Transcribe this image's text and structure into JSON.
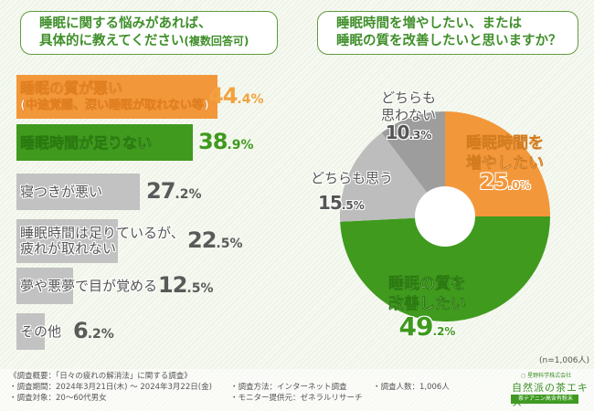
{
  "left_question": {
    "line1": "睡眠に関する悩みがあれば、",
    "line2": "具体的に教えてください",
    "suffix": "(複数回答可)"
  },
  "right_question": {
    "line1": "睡眠時間を増やしたい、または",
    "line2": "睡眠の質を改善したいと思いますか？"
  },
  "colors": {
    "orange": "#f2973a",
    "green": "#3f9a1e",
    "gray": "#c2c2c2",
    "gray_dark": "#9d9d9d",
    "gray_mid": "#bdbdbd",
    "title_green": "#3f8f2a"
  },
  "chart_data": [
    {
      "type": "bar",
      "orientation": "horizontal",
      "title": "睡眠に関する悩みがあれば、具体的に教えてください(複数回答可)",
      "categories": [
        "睡眠の質が悪い（中途覚醒、深い睡眠が取れない等）",
        "睡眠時間が足りない",
        "寝つきが悪い",
        "睡眠時間は足りているが、疲れが取れない",
        "夢や悪夢で目が覚める",
        "その他"
      ],
      "label_lines": [
        [
          "睡眠の質が悪い",
          "(中途覚醒、深い睡眠が取れない等)"
        ],
        [
          "睡眠時間が足りない"
        ],
        [
          "寝つきが悪い"
        ],
        [
          "睡眠時間は足りているが、",
          "疲れが取れない"
        ],
        [
          "夢や悪夢で目が覚める"
        ],
        [
          "その他"
        ]
      ],
      "values": [
        44.4,
        38.9,
        27.2,
        22.5,
        12.5,
        6.2
      ],
      "value_labels": [
        {
          "int": "44",
          "dec": ".4%"
        },
        {
          "int": "38",
          "dec": ".9%"
        },
        {
          "int": "27",
          "dec": ".2%"
        },
        {
          "int": "22",
          "dec": ".5%"
        },
        {
          "int": "12",
          "dec": ".5%"
        },
        {
          "int": "6",
          "dec": ".2%"
        }
      ],
      "bar_colors": [
        "#f2973a",
        "#3f9a1e",
        "#c2c2c2",
        "#c2c2c2",
        "#c2c2c2",
        "#c2c2c2"
      ],
      "value_colors": [
        "#f2a23f",
        "#3f9a1e",
        "#5a5a5a",
        "#5a5a5a",
        "#5a5a5a",
        "#5a5a5a"
      ],
      "unit": "%",
      "xlim": [
        0,
        44.4
      ]
    },
    {
      "type": "pie",
      "donut": true,
      "title": "睡眠時間を増やしたい、または睡眠の質を改善したいと思いますか？",
      "slices": [
        {
          "label": "睡眠時間を増やしたい",
          "lines": [
            "睡眠時間を",
            "増やしたい"
          ],
          "value": 25.0,
          "int": "25",
          "dec": ".0%",
          "color": "#f2973a"
        },
        {
          "label": "睡眠の質を改善したい",
          "lines": [
            "睡眠の質を",
            "改善したい"
          ],
          "value": 49.2,
          "int": "49",
          "dec": ".2%",
          "color": "#3f9a1e"
        },
        {
          "label": "どちらも思う",
          "lines": [
            "どちらも思う"
          ],
          "value": 15.5,
          "int": "15",
          "dec": ".5%",
          "color": "#bdbdbd"
        },
        {
          "label": "どちらも思わない",
          "lines": [
            "どちらも",
            "思わない"
          ],
          "value": 10.3,
          "int": "10",
          "dec": ".3%",
          "color": "#9d9d9d"
        }
      ],
      "start": "top",
      "direction": "clockwise",
      "note": "(n=1,006人)"
    }
  ],
  "footer": {
    "summary": "《調査概要：「日々の疲れの解消法」に関する調査》",
    "period": "・調査期間：2024年3月21日(木) ～ 2024年3月22日(金)",
    "target": "・調査対象：20～60代男女",
    "method": "・調査方法：インターネット調査",
    "provider": "・モニター提供元：ゼネラルリサーチ",
    "respondents": "・調査人数：1,006人"
  },
  "logo": {
    "company": "星野科学株式会社",
    "product": "自然派の茶エキス",
    "tagline": "茶テアニン高含有粉末"
  }
}
